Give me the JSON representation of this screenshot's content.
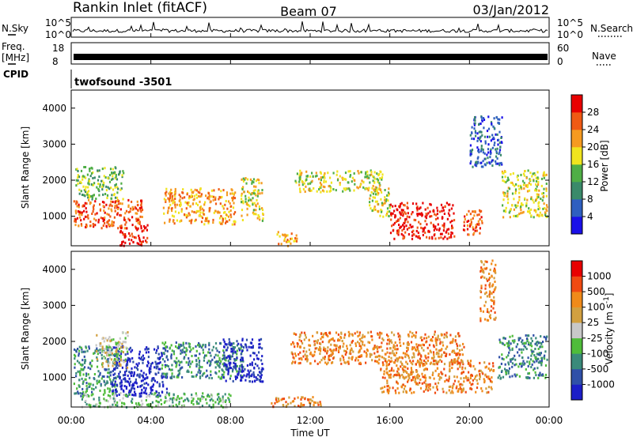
{
  "header": {
    "title": "Rankin Inlet (fitACF)",
    "beam": "Beam 07",
    "date": "03/Jan/2012"
  },
  "strip_nsky": {
    "left_label": "N.Sky",
    "right_label": "N.Search",
    "tick_top": "10^5",
    "tick_bottom": "10^0"
  },
  "strip_freq": {
    "left_label_line1": "Freq.",
    "left_label_line2": "[MHz]",
    "tick_top": "18",
    "tick_bottom": "8",
    "right_label": "Nave",
    "right_tick_top": "60",
    "right_tick_bottom": "0"
  },
  "strip_cpid": {
    "left_label": "CPID",
    "text": "twofsound -3501"
  },
  "x_axis": {
    "label": "Time UT",
    "ticks": [
      "00:00",
      "04:00",
      "08:00",
      "12:00",
      "16:00",
      "20:00",
      "00:00"
    ],
    "hours": [
      0,
      4,
      8,
      12,
      16,
      20,
      24
    ]
  },
  "chart_data": [
    {
      "type": "heatmap",
      "name": "power",
      "xlabel": "Time UT",
      "ylabel": "Slant Range [km]",
      "xlim": [
        0,
        24
      ],
      "ylim": [
        180,
        4500
      ],
      "yticks": [
        1000,
        2000,
        3000,
        4000
      ],
      "colorbar_label": "Power [dB]",
      "colorbar_ticks": [
        "4",
        "8",
        "12",
        "16",
        "20",
        "24",
        "28"
      ],
      "colorbar_colors": [
        "#1a10e8",
        "#2f5fc0",
        "#3a8a6a",
        "#4fae46",
        "#f0e41e",
        "#f59a20",
        "#f05a14",
        "#e80000"
      ],
      "regions": [
        {
          "t0": 0.1,
          "t1": 3.6,
          "r0": 700,
          "r1": 1500,
          "level": 6
        },
        {
          "t0": 2.4,
          "t1": 3.8,
          "r0": 200,
          "r1": 800,
          "level": 7
        },
        {
          "t0": 0.2,
          "t1": 2.6,
          "r0": 1500,
          "r1": 2400,
          "level": 3
        },
        {
          "t0": 4.6,
          "t1": 8.2,
          "r0": 800,
          "r1": 1800,
          "level": 5
        },
        {
          "t0": 8.5,
          "t1": 9.6,
          "r0": 900,
          "r1": 2100,
          "level": 4
        },
        {
          "t0": 10.3,
          "t1": 11.3,
          "r0": 200,
          "r1": 600,
          "level": 5
        },
        {
          "t0": 11.2,
          "t1": 15.6,
          "r0": 1700,
          "r1": 2300,
          "level": 4
        },
        {
          "t0": 14.9,
          "t1": 16.0,
          "r0": 1000,
          "r1": 1800,
          "level": 4
        },
        {
          "t0": 16.0,
          "t1": 19.2,
          "r0": 400,
          "r1": 1400,
          "level": 7
        },
        {
          "t0": 19.6,
          "t1": 20.6,
          "r0": 500,
          "r1": 1200,
          "level": 6
        },
        {
          "t0": 21.6,
          "t1": 24.0,
          "r0": 1000,
          "r1": 2300,
          "level": 4
        },
        {
          "t0": 20.0,
          "t1": 21.6,
          "r0": 2400,
          "r1": 3800,
          "level": 1
        }
      ]
    },
    {
      "type": "heatmap",
      "name": "velocity",
      "xlabel": "Time UT",
      "ylabel": "Slant Range [km]",
      "xlim": [
        0,
        24
      ],
      "ylim": [
        180,
        4500
      ],
      "yticks": [
        1000,
        2000,
        3000,
        4000
      ],
      "colorbar_label": "Velocity [m s^-1]",
      "colorbar_ticks": [
        "1000",
        "500",
        "100",
        "25",
        "-25",
        "-100",
        "-500",
        "-1000"
      ],
      "colorbar_colors": [
        "#1c1ec8",
        "#3050a8",
        "#3a8a7a",
        "#4fbc3a",
        "#c8c8c8",
        "#d2a040",
        "#f08a1a",
        "#f04a12",
        "#e80000"
      ],
      "regions": [
        {
          "t0": 0.1,
          "t1": 2.3,
          "r0": 500,
          "r1": 1900,
          "level": 2
        },
        {
          "t0": 2.0,
          "t1": 4.8,
          "r0": 500,
          "r1": 1900,
          "level": 0
        },
        {
          "t0": 1.2,
          "t1": 2.8,
          "r0": 1300,
          "r1": 2300,
          "level": 4
        },
        {
          "t0": 4.5,
          "t1": 8.6,
          "r0": 1000,
          "r1": 2000,
          "level": 2
        },
        {
          "t0": 7.6,
          "t1": 9.6,
          "r0": 900,
          "r1": 2100,
          "level": 0
        },
        {
          "t0": 0.5,
          "t1": 8.0,
          "r0": 200,
          "r1": 600,
          "level": 3
        },
        {
          "t0": 10.0,
          "t1": 12.5,
          "r0": 200,
          "r1": 500,
          "level": 6
        },
        {
          "t0": 11.0,
          "t1": 19.7,
          "r0": 1400,
          "r1": 2300,
          "level": 6
        },
        {
          "t0": 15.5,
          "t1": 21.2,
          "r0": 600,
          "r1": 1500,
          "level": 6
        },
        {
          "t0": 20.5,
          "t1": 21.3,
          "r0": 2600,
          "r1": 4300,
          "level": 6
        },
        {
          "t0": 21.4,
          "t1": 24.0,
          "r0": 1000,
          "r1": 2200,
          "level": 2
        }
      ]
    }
  ]
}
